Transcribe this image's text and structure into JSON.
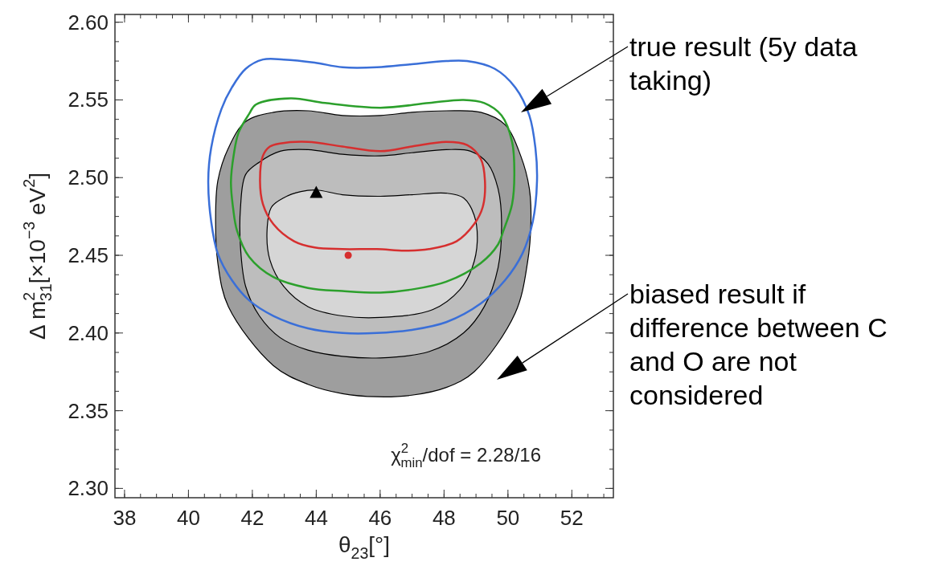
{
  "chart_data": {
    "type": "area",
    "xlabel": "θ$_{23}$[°]",
    "ylabel": "Δ m$^{2}$$_{31}$[×10$^{−3}$ eV$^{2}$]",
    "xlim": [
      37.7,
      53.3
    ],
    "ylim": [
      2.294,
      2.605
    ],
    "xticks": [
      38,
      40,
      42,
      44,
      46,
      48,
      50,
      52
    ],
    "yticks": [
      {
        "value": 2.3,
        "label": "2.30"
      },
      {
        "value": 2.35,
        "label": "2.35"
      },
      {
        "value": 2.4,
        "label": "2.40"
      },
      {
        "value": 2.45,
        "label": "2.45"
      },
      {
        "value": 2.5,
        "label": "2.50"
      },
      {
        "value": 2.55,
        "label": "2.55"
      },
      {
        "value": 2.6,
        "label": "2.60"
      }
    ],
    "series": [
      {
        "color": "#9e9e9e",
        "x": [
          41.79,
          42.66,
          43.74,
          44.82,
          46.01,
          46.99,
          48.07,
          49.15,
          49.91,
          50.4,
          50.67,
          50.72,
          50.61,
          50.23,
          49.69,
          48.94,
          48.07,
          46.99,
          45.9,
          44.82,
          43.74,
          42.66,
          41.79,
          41.25,
          40.92,
          40.85,
          40.92,
          41.25
        ],
        "values": [
          2.536,
          2.542,
          2.543,
          2.54,
          2.54,
          2.542,
          2.543,
          2.542,
          2.534,
          2.514,
          2.493,
          2.472,
          2.445,
          2.413,
          null,
          2.375,
          2.365,
          2.36,
          2.359,
          2.361,
          2.367,
          2.379,
          null,
          2.417,
          2.445,
          2.472,
          2.498,
          2.519
        ]
      },
      {
        "color": "#bdbdbd",
        "x": [
          42.22,
          42.87,
          43.74,
          44.82,
          46.01,
          46.99,
          48.07,
          48.83,
          49.37,
          49.69,
          49.8,
          49.69,
          49.26,
          48.61,
          47.53,
          46.01,
          44.82,
          43.74,
          42.87,
          42.22,
          41.79,
          41.63,
          41.63,
          41.79
        ],
        "values": [
          2.51,
          2.517,
          2.518,
          2.515,
          2.514,
          2.516,
          2.518,
          2.517,
          2.509,
          2.493,
          2.472,
          2.442,
          2.417,
          2.4,
          2.388,
          2.384,
          2.385,
          2.389,
          2.397,
          2.411,
          2.43,
          2.455,
          2.481,
          2.502
        ]
      },
      {
        "color": "#d6d6d6",
        "x": [
          42.98,
          43.52,
          44.01,
          44.82,
          46.01,
          46.99,
          48.07,
          48.61,
          48.94,
          49.04,
          48.88,
          48.5,
          47.64,
          46.01,
          44.82,
          43.74,
          42.98,
          42.55,
          42.46,
          42.6
        ],
        "values": [
          2.487,
          2.491,
          2.492,
          2.489,
          2.488,
          2.489,
          2.49,
          2.487,
          2.476,
          2.459,
          2.442,
          2.428,
          2.415,
          2.41,
          2.411,
          2.417,
          2.43,
          2.447,
          2.466,
          2.481
        ]
      },
      {
        "type": "scatter",
        "marker": "triangle",
        "color": "#000000",
        "x": [
          44
        ],
        "values": [
          2.49
        ]
      },
      {
        "type": "scatter",
        "marker": "circle",
        "color": "#d62f2f",
        "x": [
          45
        ],
        "values": [
          2.45
        ]
      }
    ],
    "annotations": [
      "χ$^{2}$$_{min}$/dof = 2.28/16",
      "true result (5y data taking)",
      "biased result if difference between C and O are not considered"
    ]
  }
}
